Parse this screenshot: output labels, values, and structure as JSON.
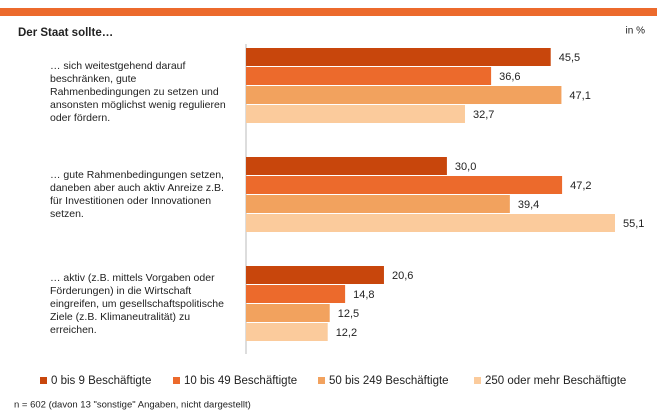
{
  "chart_data": {
    "type": "bar",
    "orientation": "horizontal",
    "title": "Der Staat sollte…",
    "unit_label": "in %",
    "categories": [
      "… sich weitestgehend darauf beschränken, gute Rahmenbedingungen zu setzen und ansonsten möglichst wenig regulieren oder fördern.",
      "… gute Rahmenbedingungen setzen, daneben aber auch aktiv Anreize z.B. für Investitionen oder Innovationen setzen.",
      "… aktiv (z.B. mittels Vorgaben oder Förderungen) in die Wirtschaft eingreifen, um gesellschaftspolitische Ziele (z.B. Klimaneutralität) zu erreichen."
    ],
    "series": [
      {
        "name": "0 bis 9 Beschäftigte",
        "color": "#c8460c",
        "values": [
          45.5,
          30.0,
          20.6
        ],
        "value_labels": [
          "45,5",
          "30,0",
          "20,6"
        ]
      },
      {
        "name": "10 bis 49 Beschäftigte",
        "color": "#ec6a2c",
        "values": [
          36.6,
          47.2,
          14.8
        ],
        "value_labels": [
          "36,6",
          "47,2",
          "14,8"
        ]
      },
      {
        "name": "50 bis 249 Beschäftigte",
        "color": "#f2a25e",
        "values": [
          47.1,
          39.4,
          12.5
        ],
        "value_labels": [
          "47,1",
          "39,4",
          "12,5"
        ]
      },
      {
        "name": "250 oder mehr Beschäftigte",
        "color": "#fbcb9c",
        "values": [
          32.7,
          55.1,
          12.2
        ],
        "value_labels": [
          "32,7",
          "55,1",
          "12,2"
        ]
      }
    ],
    "footnote": "n = 602 (davon 13 \"sonstige\" Angaben, nicht dargestellt)"
  }
}
